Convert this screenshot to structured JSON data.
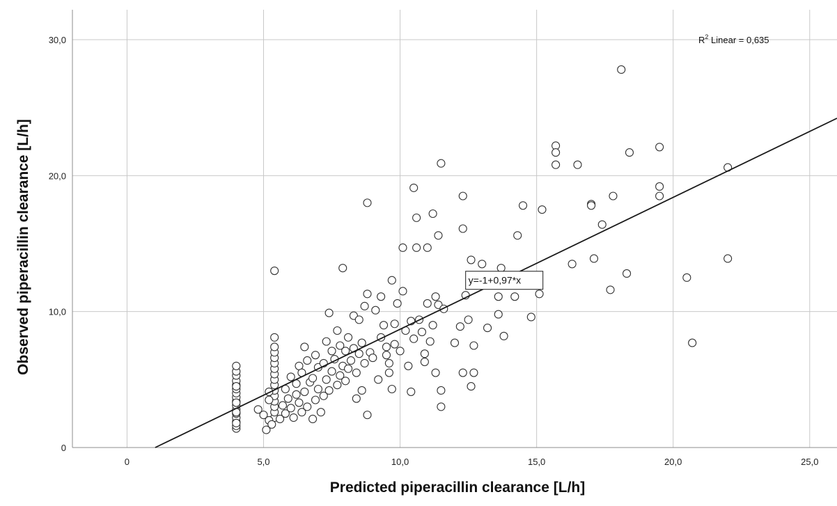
{
  "chart_data": {
    "type": "scatter",
    "xlabel": "Predicted piperacillin clearance [L/h]",
    "ylabel": "Observed piperacillin clearance [L/h]",
    "xlim": [
      -2.0,
      26.0
    ],
    "ylim": [
      0,
      32.2
    ],
    "x_ticks": [
      {
        "value": 0,
        "label": "0"
      },
      {
        "value": 5,
        "label": "5,0"
      },
      {
        "value": 10,
        "label": "10,0"
      },
      {
        "value": 15,
        "label": "15,0"
      },
      {
        "value": 20,
        "label": "20,0"
      },
      {
        "value": 25,
        "label": "25,0"
      }
    ],
    "y_ticks": [
      {
        "value": 0,
        "label": "0"
      },
      {
        "value": 10,
        "label": "10,0"
      },
      {
        "value": 20,
        "label": "20,0"
      },
      {
        "value": 30,
        "label": "30,0"
      }
    ],
    "grid": true,
    "fit_line": {
      "intercept": -1,
      "slope": 0.97,
      "equation_label": "y=-1+0,97*x"
    },
    "r2": {
      "label_main": "R",
      "label_sup": "2",
      "label_rest": " Linear = 0,635"
    },
    "colors": {
      "marker_stroke": "#333333",
      "marker_fill": "#ffffff",
      "line": "#1a1a1a",
      "grid": "#c8c8c8",
      "frame": "#8c8c8c"
    },
    "points": [
      [
        4.0,
        1.4
      ],
      [
        4.0,
        1.6
      ],
      [
        4.0,
        1.9
      ],
      [
        4.0,
        2.2
      ],
      [
        4.0,
        2.5
      ],
      [
        4.0,
        2.8
      ],
      [
        4.0,
        3.1
      ],
      [
        4.0,
        3.4
      ],
      [
        4.0,
        3.7
      ],
      [
        4.0,
        4.0
      ],
      [
        4.0,
        4.3
      ],
      [
        4.0,
        4.6
      ],
      [
        4.0,
        4.9
      ],
      [
        4.0,
        5.3
      ],
      [
        4.0,
        5.6
      ],
      [
        4.0,
        6.0
      ],
      [
        4.0,
        1.8
      ],
      [
        4.0,
        2.6
      ],
      [
        4.0,
        3.3
      ],
      [
        4.0,
        4.5
      ],
      [
        5.4,
        2.2
      ],
      [
        5.4,
        2.6
      ],
      [
        5.4,
        3.0
      ],
      [
        5.4,
        3.4
      ],
      [
        5.4,
        3.8
      ],
      [
        5.4,
        4.2
      ],
      [
        5.4,
        4.6
      ],
      [
        5.4,
        5.0
      ],
      [
        5.4,
        5.4
      ],
      [
        5.4,
        5.8
      ],
      [
        5.4,
        6.2
      ],
      [
        5.4,
        6.6
      ],
      [
        5.4,
        7.0
      ],
      [
        5.4,
        7.4
      ],
      [
        5.4,
        8.1
      ],
      [
        5.4,
        13.0
      ],
      [
        4.8,
        2.8
      ],
      [
        5.0,
        2.4
      ],
      [
        5.1,
        1.3
      ],
      [
        5.2,
        2.0
      ],
      [
        5.2,
        3.5
      ],
      [
        5.3,
        1.7
      ],
      [
        5.2,
        4.1
      ],
      [
        5.6,
        2.1
      ],
      [
        5.7,
        3.1
      ],
      [
        5.8,
        2.5
      ],
      [
        5.8,
        4.3
      ],
      [
        5.9,
        3.6
      ],
      [
        6.0,
        2.9
      ],
      [
        6.0,
        5.2
      ],
      [
        6.1,
        2.2
      ],
      [
        6.2,
        3.9
      ],
      [
        6.2,
        4.7
      ],
      [
        6.3,
        3.3
      ],
      [
        6.3,
        6.0
      ],
      [
        6.4,
        2.6
      ],
      [
        6.4,
        5.5
      ],
      [
        6.5,
        4.1
      ],
      [
        6.5,
        7.4
      ],
      [
        6.6,
        3.0
      ],
      [
        6.6,
        6.4
      ],
      [
        6.7,
        4.8
      ],
      [
        6.8,
        2.1
      ],
      [
        6.8,
        5.1
      ],
      [
        6.9,
        3.5
      ],
      [
        6.9,
        6.8
      ],
      [
        7.0,
        4.3
      ],
      [
        7.0,
        5.9
      ],
      [
        7.1,
        2.6
      ],
      [
        7.2,
        3.8
      ],
      [
        7.2,
        6.2
      ],
      [
        7.3,
        5.0
      ],
      [
        7.3,
        7.8
      ],
      [
        7.4,
        4.2
      ],
      [
        7.4,
        9.9
      ],
      [
        7.5,
        5.6
      ],
      [
        7.5,
        7.1
      ],
      [
        7.6,
        6.5
      ],
      [
        7.7,
        4.6
      ],
      [
        7.7,
        8.6
      ],
      [
        7.8,
        5.3
      ],
      [
        7.8,
        7.5
      ],
      [
        7.9,
        6.0
      ],
      [
        7.9,
        13.2
      ],
      [
        8.0,
        4.9
      ],
      [
        8.0,
        7.1
      ],
      [
        8.1,
        5.8
      ],
      [
        8.1,
        8.1
      ],
      [
        8.2,
        6.4
      ],
      [
        8.3,
        9.7
      ],
      [
        8.3,
        7.3
      ],
      [
        8.4,
        5.5
      ],
      [
        8.5,
        6.9
      ],
      [
        8.5,
        9.4
      ],
      [
        8.6,
        7.7
      ],
      [
        8.6,
        4.2
      ],
      [
        8.7,
        6.2
      ],
      [
        8.7,
        10.4
      ],
      [
        8.8,
        11.3
      ],
      [
        8.8,
        18.0
      ],
      [
        8.8,
        2.4
      ],
      [
        8.9,
        7.0
      ],
      [
        9.0,
        6.6
      ],
      [
        9.1,
        10.1
      ],
      [
        9.2,
        5.0
      ],
      [
        9.3,
        8.1
      ],
      [
        9.3,
        11.1
      ],
      [
        9.4,
        9.0
      ],
      [
        9.5,
        6.8
      ],
      [
        9.5,
        7.4
      ],
      [
        9.6,
        6.2
      ],
      [
        9.7,
        12.3
      ],
      [
        9.7,
        4.3
      ],
      [
        9.8,
        7.6
      ],
      [
        9.9,
        10.6
      ],
      [
        10.0,
        7.1
      ],
      [
        10.1,
        11.5
      ],
      [
        10.1,
        14.7
      ],
      [
        10.2,
        8.6
      ],
      [
        10.3,
        6.0
      ],
      [
        10.4,
        9.3
      ],
      [
        10.4,
        4.1
      ],
      [
        10.5,
        19.1
      ],
      [
        10.5,
        8.0
      ],
      [
        10.6,
        16.9
      ],
      [
        10.6,
        14.7
      ],
      [
        10.7,
        9.4
      ],
      [
        10.8,
        8.5
      ],
      [
        10.9,
        6.9
      ],
      [
        11.0,
        10.6
      ],
      [
        11.0,
        14.7
      ],
      [
        11.1,
        7.8
      ],
      [
        11.2,
        9.0
      ],
      [
        11.2,
        17.2
      ],
      [
        11.3,
        11.1
      ],
      [
        11.3,
        5.5
      ],
      [
        11.4,
        15.6
      ],
      [
        11.4,
        10.5
      ],
      [
        11.5,
        4.2
      ],
      [
        11.5,
        20.9
      ],
      [
        11.5,
        3.0
      ],
      [
        11.6,
        10.2
      ],
      [
        12.0,
        7.7
      ],
      [
        12.2,
        8.9
      ],
      [
        12.3,
        18.5
      ],
      [
        12.3,
        16.1
      ],
      [
        12.4,
        11.2
      ],
      [
        12.5,
        9.4
      ],
      [
        12.6,
        13.8
      ],
      [
        12.7,
        7.5
      ],
      [
        12.7,
        5.5
      ],
      [
        13.0,
        13.5
      ],
      [
        13.2,
        8.8
      ],
      [
        13.5,
        12.4
      ],
      [
        13.6,
        11.1
      ],
      [
        13.6,
        9.8
      ],
      [
        13.7,
        13.2
      ],
      [
        13.8,
        8.2
      ],
      [
        14.2,
        11.1
      ],
      [
        14.3,
        15.6
      ],
      [
        14.5,
        17.8
      ],
      [
        14.8,
        9.6
      ],
      [
        15.1,
        11.3
      ],
      [
        15.2,
        17.5
      ],
      [
        15.7,
        22.2
      ],
      [
        15.7,
        21.7
      ],
      [
        15.7,
        20.8
      ],
      [
        16.3,
        13.5
      ],
      [
        16.5,
        20.8
      ],
      [
        17.0,
        17.9
      ],
      [
        17.0,
        17.8
      ],
      [
        17.1,
        13.9
      ],
      [
        17.4,
        16.4
      ],
      [
        17.7,
        11.6
      ],
      [
        17.8,
        18.5
      ],
      [
        18.1,
        27.8
      ],
      [
        18.3,
        12.8
      ],
      [
        18.4,
        21.7
      ],
      [
        19.5,
        22.1
      ],
      [
        19.5,
        19.2
      ],
      [
        19.5,
        18.5
      ],
      [
        20.5,
        12.5
      ],
      [
        20.7,
        7.7
      ],
      [
        22.0,
        20.6
      ],
      [
        22.0,
        13.9
      ],
      [
        12.3,
        5.5
      ],
      [
        12.6,
        4.5
      ],
      [
        10.9,
        6.3
      ],
      [
        9.6,
        5.5
      ],
      [
        9.8,
        9.1
      ],
      [
        8.4,
        3.6
      ]
    ]
  }
}
